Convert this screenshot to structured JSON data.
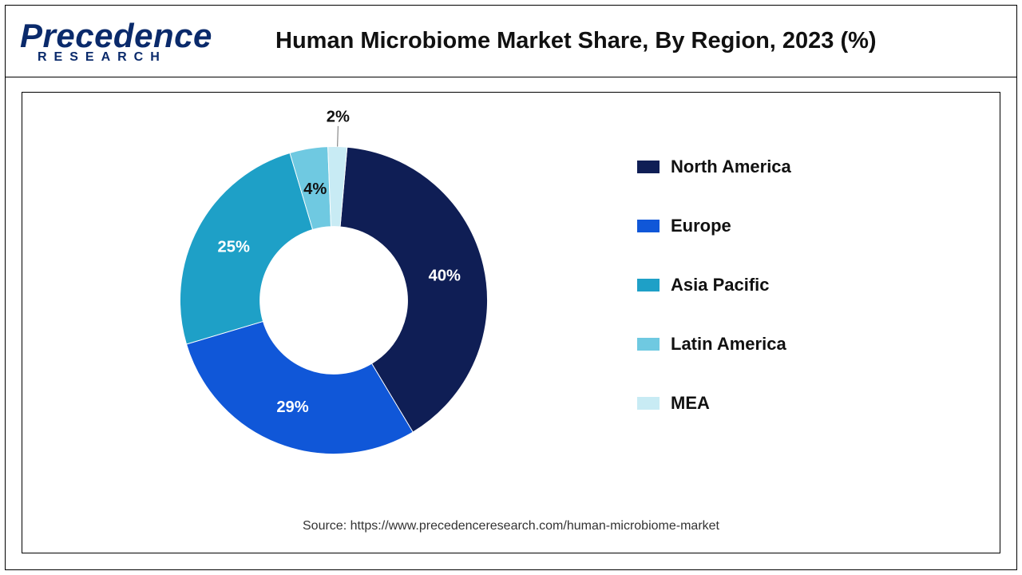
{
  "logo": {
    "top": "Precedence",
    "sub": "RESEARCH"
  },
  "title": "Human Microbiome Market Share, By Region, 2023 (%)",
  "chart": {
    "type": "donut",
    "inner_radius_ratio": 0.48,
    "outer_radius": 210,
    "start_angle_deg": 5,
    "direction": "clockwise",
    "background_color": "#ffffff",
    "border_color": "#000000",
    "slices": [
      {
        "label": "North America",
        "value": 40,
        "color": "#0f1e55",
        "display": "40%",
        "label_inside": true,
        "label_color": "#ffffff"
      },
      {
        "label": "Europe",
        "value": 29,
        "color": "#1057d8",
        "display": "29%",
        "label_inside": true,
        "label_color": "#ffffff"
      },
      {
        "label": "Asia Pacific",
        "value": 25,
        "color": "#1ea0c7",
        "display": "25%",
        "label_inside": true,
        "label_color": "#ffffff"
      },
      {
        "label": "Latin America",
        "value": 4,
        "color": "#6fc9e1",
        "display": "4%",
        "label_inside": true,
        "label_color": "#111111"
      },
      {
        "label": "MEA",
        "value": 2,
        "color": "#c8ebf4",
        "display": "2%",
        "label_inside": false,
        "label_color": "#111111"
      }
    ],
    "label_fontsize": 22,
    "label_fontweight": 700
  },
  "legend": {
    "items": [
      {
        "label": "North America",
        "color": "#0f1e55"
      },
      {
        "label": "Europe",
        "color": "#1057d8"
      },
      {
        "label": "Asia Pacific",
        "color": "#1ea0c7"
      },
      {
        "label": "Latin America",
        "color": "#6fc9e1"
      },
      {
        "label": "MEA",
        "color": "#c8ebf4"
      }
    ],
    "fontsize": 22,
    "fontweight": 700,
    "swatch_width": 28,
    "swatch_height": 16
  },
  "source_text": "Source: https://www.precedenceresearch.com/human-microbiome-market"
}
